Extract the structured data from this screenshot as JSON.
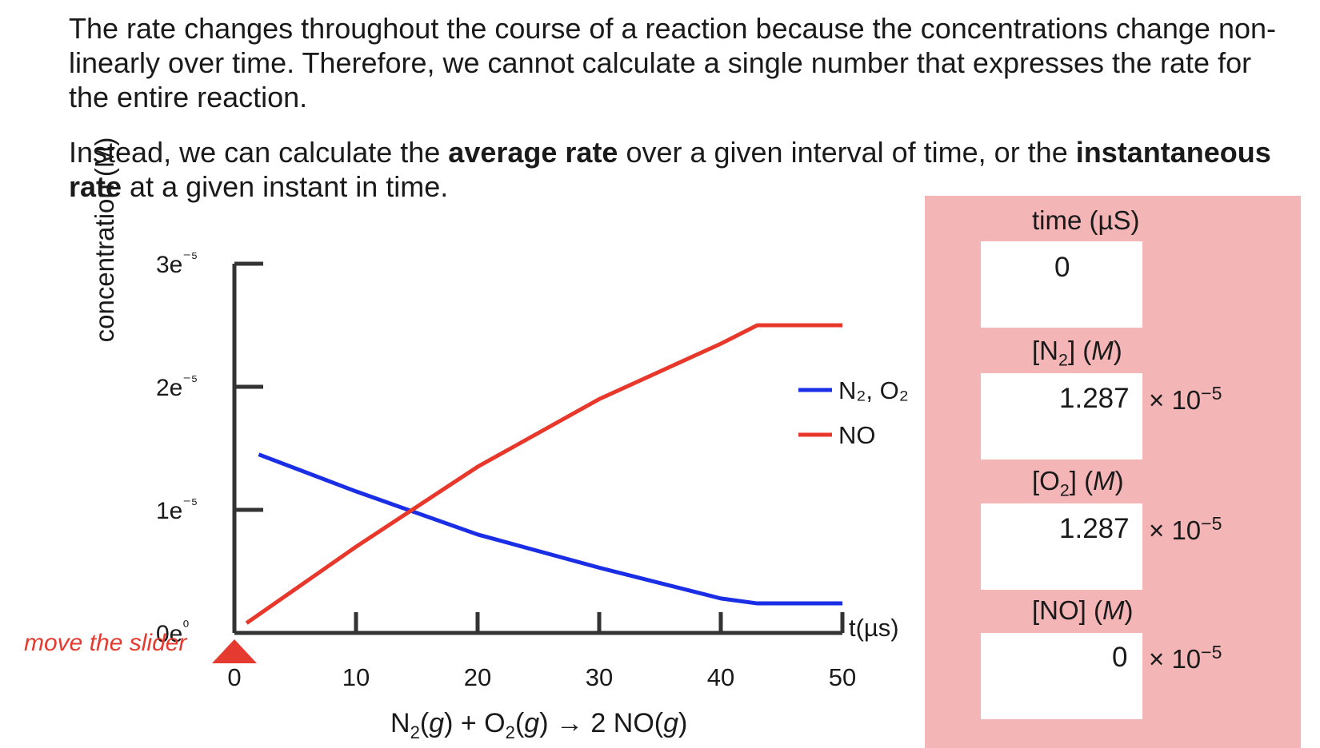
{
  "intro": {
    "p1": "The rate changes throughout the course of a reaction because the concentrations change non-linearly over time. Therefore, we cannot calculate a single number that expresses the rate for the entire reaction.",
    "p2_a": "Instead, we can calculate the ",
    "p2_b": "average rate",
    "p2_c": " over a given interval of time, or the ",
    "p2_d": "instantaneous rate",
    "p2_e": " at a given instant in time."
  },
  "chart_data": {
    "type": "line",
    "ylabel": "concentration (M)",
    "xlabel": "t(µs)",
    "x_ticks": [
      "0",
      "10",
      "20",
      "30",
      "40",
      "50"
    ],
    "y_ticks": [
      "0e⁰",
      "1e⁻⁵",
      "2e⁻⁵",
      "3e⁻⁵"
    ],
    "xlim": [
      0,
      50
    ],
    "ylim": [
      0,
      3e-05
    ],
    "series": [
      {
        "name": "N₂, O₂",
        "color": "#1a2ee6",
        "x": [
          2,
          10,
          20,
          30,
          40,
          43,
          50
        ],
        "y": [
          1.45e-05,
          1.15e-05,
          8e-06,
          5.3e-06,
          2.8e-06,
          2.4e-06,
          2.4e-06
        ]
      },
      {
        "name": "NO",
        "color": "#e8382c",
        "x": [
          1,
          10,
          20,
          30,
          40,
          43,
          50
        ],
        "y": [
          8e-07,
          7e-06,
          1.35e-05,
          1.9e-05,
          2.35e-05,
          2.5e-05,
          2.5e-05
        ]
      }
    ]
  },
  "slider": {
    "label": "move the slider",
    "value": 0,
    "color": "#e53a2f"
  },
  "equation": {
    "n2": "N",
    "n2_sub": "2",
    "g1": "g",
    "plus": " + O",
    "o2_sub": "2",
    "g2": "g",
    "arrow": " → 2 NO(",
    "g3": "g"
  },
  "panel": {
    "time_label": "time (µS)",
    "time_value": "0",
    "n2_label_a": "[N",
    "n2_label_sub": "2",
    "n2_label_b": "] (",
    "n2_label_m": "M",
    "n2_label_c": ")",
    "n2_value": "1.287",
    "o2_label_a": "[O",
    "o2_label_sub": "2",
    "o2_label_b": "] (",
    "o2_label_m": "M",
    "o2_label_c": ")",
    "o2_value": "1.287",
    "no_label_a": "[NO] (",
    "no_label_m": "M",
    "no_label_c": ")",
    "no_value": "0",
    "sci_factor": "× 10",
    "sci_exp": "−5"
  }
}
